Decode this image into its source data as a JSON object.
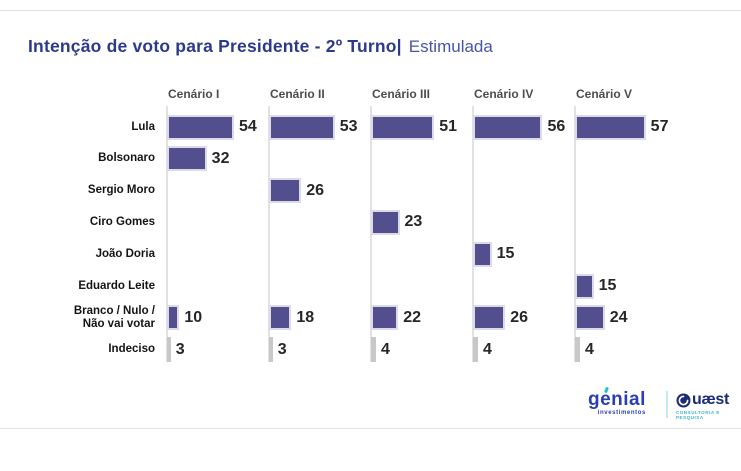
{
  "header": {
    "title_bold": "Intenção de voto para Presidente - 2º Turno|",
    "title_light": "Estimulada"
  },
  "chart_data": {
    "type": "bar",
    "orientation": "horizontal",
    "unit": "percent",
    "title": "Intenção de voto para Presidente - 2º Turno | Estimulada",
    "scenarios": [
      "Cenário I",
      "Cenário II",
      "Cenário III",
      "Cenário IV",
      "Cenário V"
    ],
    "categories": [
      "Lula",
      "Bolsonaro",
      "Sergio Moro",
      "Ciro Gomes",
      "João Doria",
      "Eduardo Leite",
      "Branco / Nulo /\nNão vai votar",
      "Indeciso"
    ],
    "series": [
      {
        "name": "Cenário I",
        "values": [
          54,
          32,
          null,
          null,
          null,
          null,
          10,
          3
        ]
      },
      {
        "name": "Cenário II",
        "values": [
          53,
          null,
          26,
          null,
          null,
          null,
          18,
          3
        ]
      },
      {
        "name": "Cenário III",
        "values": [
          51,
          null,
          null,
          23,
          null,
          null,
          22,
          4
        ]
      },
      {
        "name": "Cenário IV",
        "values": [
          56,
          null,
          null,
          null,
          15,
          null,
          26,
          4
        ]
      },
      {
        "name": "Cenário V",
        "values": [
          57,
          null,
          null,
          null,
          null,
          15,
          24,
          4
        ]
      }
    ],
    "gray_categories": [
      "Indeciso"
    ],
    "colors": {
      "candidate_bar": "#534f8e",
      "indeciso_bar": "#c8c8c8",
      "axis_line": "#e2e2e2",
      "title_navy": "#2d3a8c"
    },
    "xlim": [
      0,
      100
    ],
    "grid": false,
    "legend": "none"
  },
  "footer": {
    "genial": {
      "wordmark": "genial",
      "sub": "investimentos"
    },
    "quaest": {
      "initial": "Q",
      "rest": "uæst",
      "sub": "CONSULTORIA E PESQUISA"
    }
  }
}
